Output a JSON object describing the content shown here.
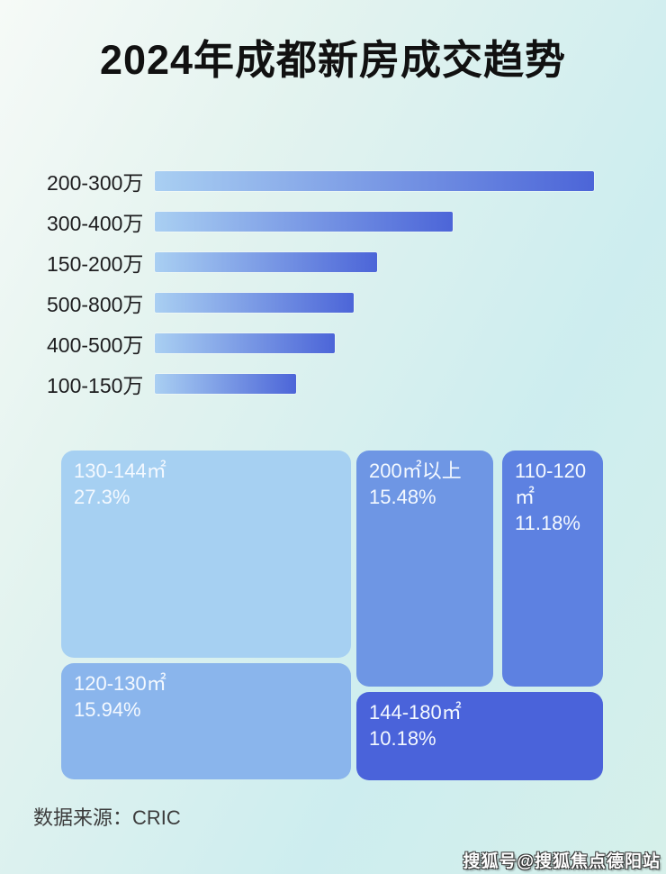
{
  "page": {
    "title": "2024年成都新房成交趋势",
    "source_label": "数据来源：CRIC",
    "watermark": "搜狐号@搜狐焦点德阳站"
  },
  "colors": {
    "bar_gradient_start": "#a9cff2",
    "bar_gradient_end": "#4c65d8",
    "title_text": "#111111",
    "bar_label_text": "#1d1d1f",
    "tile_text": "#f4f9ff",
    "background_top_left": "#f6faf7",
    "background_right": "#cdedef"
  },
  "chart_data": [
    {
      "type": "bar",
      "orientation": "horizontal",
      "title": "2024年成都新房成交趋势",
      "categories": [
        "200-300万",
        "300-400万",
        "150-200万",
        "500-800万",
        "400-500万",
        "100-150万"
      ],
      "values": [
        488,
        331,
        247,
        221,
        200,
        157
      ],
      "value_unit": "relative-bar-length-px (no numeric data labels shown in image)",
      "data_labels": false,
      "axis_labels": false,
      "grid": false,
      "legend": false
    },
    {
      "type": "treemap",
      "tiles": [
        {
          "label": "130-144㎡",
          "value_pct": 27.3,
          "value_label": "27.3%",
          "color": "#a6d0f2"
        },
        {
          "label": "200㎡以上",
          "value_pct": 15.48,
          "value_label": "15.48%",
          "color": "#6e96e4"
        },
        {
          "label": "110-120㎡",
          "value_pct": 11.18,
          "value_label": "11.18%",
          "color": "#5d81e1"
        },
        {
          "label": "120-130㎡",
          "value_pct": 15.94,
          "value_label": "15.94%",
          "color": "#8ab5ec"
        },
        {
          "label": "144-180㎡",
          "value_pct": 10.18,
          "value_label": "10.18%",
          "color": "#4a63da"
        }
      ],
      "legend": false
    }
  ]
}
